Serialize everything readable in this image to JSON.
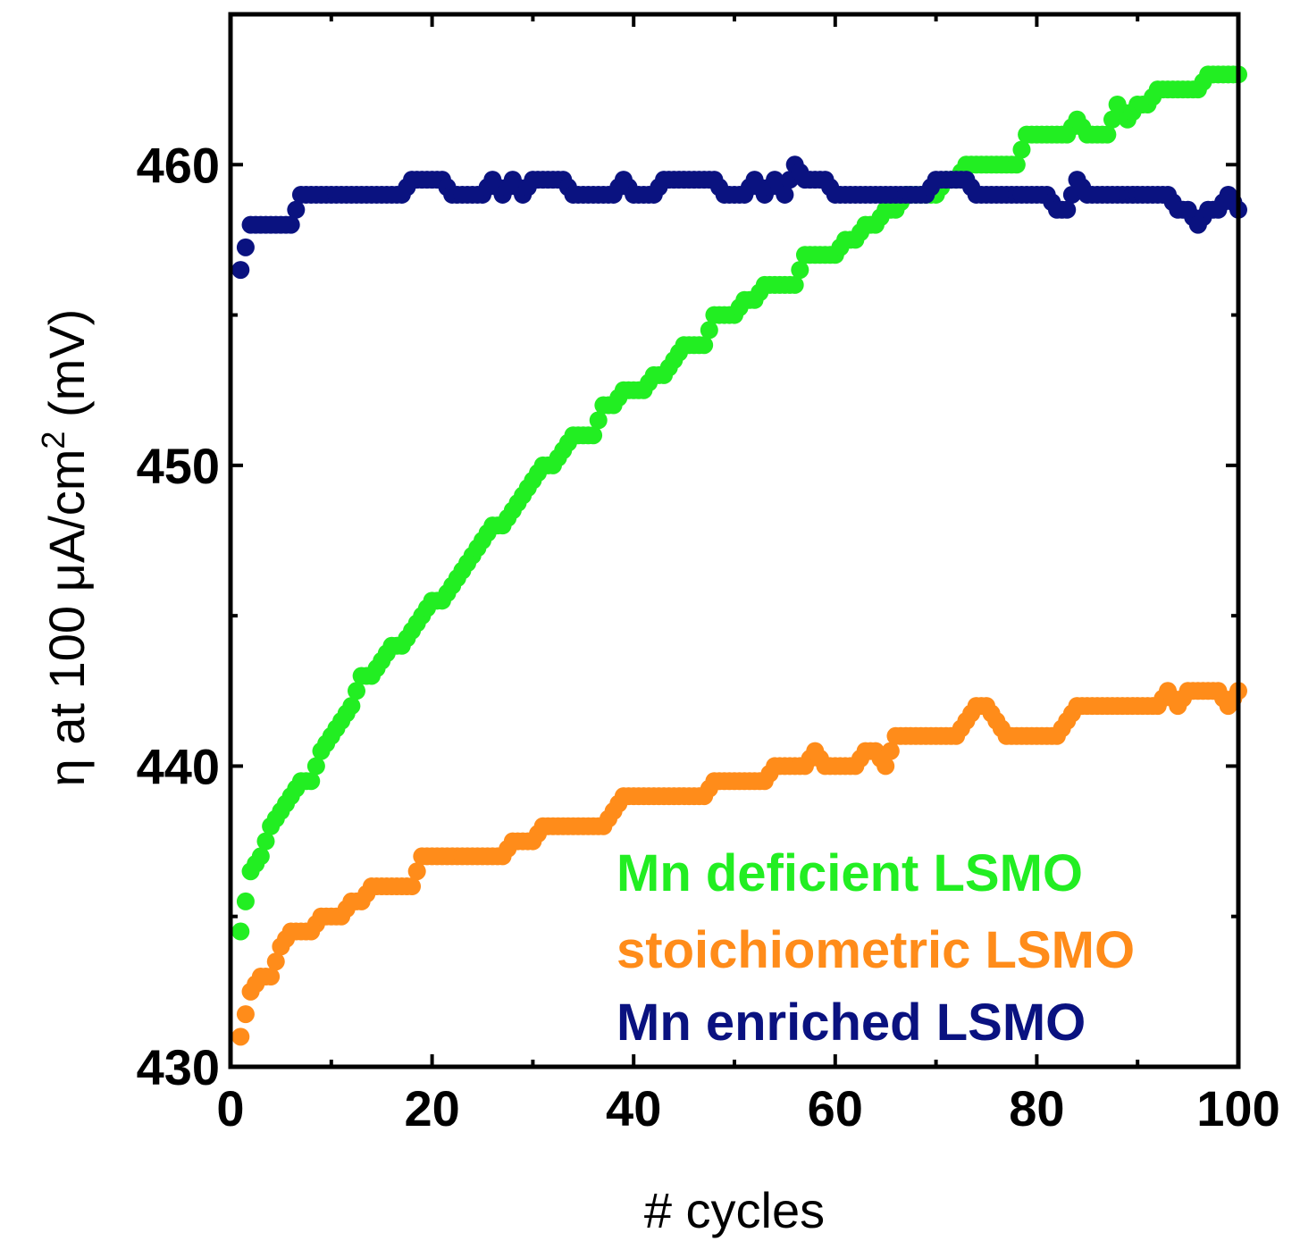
{
  "chart_data": {
    "type": "scatter",
    "title": "",
    "xlabel": "# cycles",
    "ylabel_prefix": "η at 100 μA/cm",
    "ylabel_sup": "2",
    "ylabel_suffix": " (mV)",
    "xlim": [
      0,
      100
    ],
    "ylim": [
      430,
      465
    ],
    "xticks": [
      0,
      20,
      40,
      60,
      80,
      100
    ],
    "xtick_labels": [
      "0",
      "20",
      "40",
      "60",
      "80",
      "100"
    ],
    "yticks": [
      430,
      440,
      450,
      460
    ],
    "ytick_labels": [
      "430",
      "440",
      "450",
      "460"
    ],
    "grid": false,
    "legend_position": "bottom-right",
    "series": [
      {
        "name": "Mn deficient LSMO",
        "color": "#22ee22",
        "anchors": [
          [
            1,
            434.5
          ],
          [
            2,
            436.5
          ],
          [
            3,
            437
          ],
          [
            4,
            438
          ],
          [
            5,
            438.5
          ],
          [
            6,
            439
          ],
          [
            7,
            439.5
          ],
          [
            8,
            439.5
          ],
          [
            9,
            440.5
          ],
          [
            10,
            441
          ],
          [
            11,
            441.5
          ],
          [
            12,
            442
          ],
          [
            13,
            443
          ],
          [
            14,
            443
          ],
          [
            15,
            443.5
          ],
          [
            16,
            444
          ],
          [
            17,
            444
          ],
          [
            18,
            444.5
          ],
          [
            19,
            445
          ],
          [
            20,
            445.5
          ],
          [
            21,
            445.5
          ],
          [
            22,
            446
          ],
          [
            23,
            446.5
          ],
          [
            24,
            447
          ],
          [
            25,
            447.5
          ],
          [
            26,
            448
          ],
          [
            27,
            448
          ],
          [
            28,
            448.5
          ],
          [
            29,
            449
          ],
          [
            30,
            449.5
          ],
          [
            31,
            450
          ],
          [
            32,
            450
          ],
          [
            33,
            450.5
          ],
          [
            34,
            451
          ],
          [
            35,
            451
          ],
          [
            36,
            451
          ],
          [
            37,
            452
          ],
          [
            38,
            452
          ],
          [
            39,
            452.5
          ],
          [
            40,
            452.5
          ],
          [
            41,
            452.5
          ],
          [
            42,
            453
          ],
          [
            43,
            453
          ],
          [
            44,
            453.5
          ],
          [
            45,
            454
          ],
          [
            46,
            454
          ],
          [
            47,
            454
          ],
          [
            48,
            455
          ],
          [
            49,
            455
          ],
          [
            50,
            455
          ],
          [
            51,
            455.5
          ],
          [
            52,
            455.5
          ],
          [
            53,
            456
          ],
          [
            54,
            456
          ],
          [
            55,
            456
          ],
          [
            56,
            456
          ],
          [
            57,
            457
          ],
          [
            58,
            457
          ],
          [
            59,
            457
          ],
          [
            60,
            457
          ],
          [
            61,
            457.5
          ],
          [
            62,
            457.5
          ],
          [
            63,
            458
          ],
          [
            64,
            458
          ],
          [
            65,
            458.5
          ],
          [
            66,
            458.5
          ],
          [
            67,
            459
          ],
          [
            68,
            459
          ],
          [
            69,
            459
          ],
          [
            70,
            459
          ],
          [
            71,
            459.5
          ],
          [
            72,
            459.5
          ],
          [
            73,
            460
          ],
          [
            74,
            460
          ],
          [
            75,
            460
          ],
          [
            76,
            460
          ],
          [
            77,
            460
          ],
          [
            78,
            460
          ],
          [
            79,
            461
          ],
          [
            80,
            461
          ],
          [
            81,
            461
          ],
          [
            82,
            461
          ],
          [
            83,
            461
          ],
          [
            84,
            461.5
          ],
          [
            85,
            461
          ],
          [
            86,
            461
          ],
          [
            87,
            461
          ],
          [
            88,
            462
          ],
          [
            89,
            461.5
          ],
          [
            90,
            462
          ],
          [
            91,
            462
          ],
          [
            92,
            462.5
          ],
          [
            93,
            462.5
          ],
          [
            94,
            462.5
          ],
          [
            95,
            462.5
          ],
          [
            96,
            462.5
          ],
          [
            97,
            463
          ],
          [
            98,
            463
          ],
          [
            99,
            463
          ],
          [
            100,
            463
          ]
        ]
      },
      {
        "name": "stoichiometric LSMO",
        "color": "#ff8c1a",
        "anchors": [
          [
            1,
            431
          ],
          [
            2,
            432.5
          ],
          [
            3,
            433
          ],
          [
            4,
            433
          ],
          [
            5,
            434
          ],
          [
            6,
            434.5
          ],
          [
            7,
            434.5
          ],
          [
            8,
            434.5
          ],
          [
            9,
            435
          ],
          [
            10,
            435
          ],
          [
            11,
            435
          ],
          [
            12,
            435.5
          ],
          [
            13,
            435.5
          ],
          [
            14,
            436
          ],
          [
            15,
            436
          ],
          [
            16,
            436
          ],
          [
            17,
            436
          ],
          [
            18,
            436
          ],
          [
            19,
            437
          ],
          [
            20,
            437
          ],
          [
            21,
            437
          ],
          [
            22,
            437
          ],
          [
            23,
            437
          ],
          [
            24,
            437
          ],
          [
            25,
            437
          ],
          [
            26,
            437
          ],
          [
            27,
            437
          ],
          [
            28,
            437.5
          ],
          [
            29,
            437.5
          ],
          [
            30,
            437.5
          ],
          [
            31,
            438
          ],
          [
            32,
            438
          ],
          [
            33,
            438
          ],
          [
            34,
            438
          ],
          [
            35,
            438
          ],
          [
            36,
            438
          ],
          [
            37,
            438
          ],
          [
            38,
            438.5
          ],
          [
            39,
            439
          ],
          [
            40,
            439
          ],
          [
            41,
            439
          ],
          [
            42,
            439
          ],
          [
            43,
            439
          ],
          [
            44,
            439
          ],
          [
            45,
            439
          ],
          [
            46,
            439
          ],
          [
            47,
            439
          ],
          [
            48,
            439.5
          ],
          [
            49,
            439.5
          ],
          [
            50,
            439.5
          ],
          [
            51,
            439.5
          ],
          [
            52,
            439.5
          ],
          [
            53,
            439.5
          ],
          [
            54,
            440
          ],
          [
            55,
            440
          ],
          [
            56,
            440
          ],
          [
            57,
            440
          ],
          [
            58,
            440.5
          ],
          [
            59,
            440
          ],
          [
            60,
            440
          ],
          [
            61,
            440
          ],
          [
            62,
            440
          ],
          [
            63,
            440.5
          ],
          [
            64,
            440.5
          ],
          [
            65,
            440
          ],
          [
            66,
            441
          ],
          [
            67,
            441
          ],
          [
            68,
            441
          ],
          [
            69,
            441
          ],
          [
            70,
            441
          ],
          [
            71,
            441
          ],
          [
            72,
            441
          ],
          [
            73,
            441.5
          ],
          [
            74,
            442
          ],
          [
            75,
            442
          ],
          [
            76,
            441.5
          ],
          [
            77,
            441
          ],
          [
            78,
            441
          ],
          [
            79,
            441
          ],
          [
            80,
            441
          ],
          [
            81,
            441
          ],
          [
            82,
            441
          ],
          [
            83,
            441.5
          ],
          [
            84,
            442
          ],
          [
            85,
            442
          ],
          [
            86,
            442
          ],
          [
            87,
            442
          ],
          [
            88,
            442
          ],
          [
            89,
            442
          ],
          [
            90,
            442
          ],
          [
            91,
            442
          ],
          [
            92,
            442
          ],
          [
            93,
            442.5
          ],
          [
            94,
            442
          ],
          [
            95,
            442.5
          ],
          [
            96,
            442.5
          ],
          [
            97,
            442.5
          ],
          [
            98,
            442.5
          ],
          [
            99,
            442
          ],
          [
            100,
            442.5
          ]
        ]
      },
      {
        "name": "Mn enriched LSMO",
        "color": "#0a1280",
        "anchors": [
          [
            1,
            456.5
          ],
          [
            2,
            458
          ],
          [
            3,
            458
          ],
          [
            4,
            458
          ],
          [
            5,
            458
          ],
          [
            6,
            458
          ],
          [
            7,
            459
          ],
          [
            8,
            459
          ],
          [
            9,
            459
          ],
          [
            10,
            459
          ],
          [
            11,
            459
          ],
          [
            12,
            459
          ],
          [
            13,
            459
          ],
          [
            14,
            459
          ],
          [
            15,
            459
          ],
          [
            16,
            459
          ],
          [
            17,
            459
          ],
          [
            18,
            459.5
          ],
          [
            19,
            459.5
          ],
          [
            20,
            459.5
          ],
          [
            21,
            459.5
          ],
          [
            22,
            459
          ],
          [
            23,
            459
          ],
          [
            24,
            459
          ],
          [
            25,
            459
          ],
          [
            26,
            459.5
          ],
          [
            27,
            459
          ],
          [
            28,
            459.5
          ],
          [
            29,
            459
          ],
          [
            30,
            459.5
          ],
          [
            31,
            459.5
          ],
          [
            32,
            459.5
          ],
          [
            33,
            459.5
          ],
          [
            34,
            459
          ],
          [
            35,
            459
          ],
          [
            36,
            459
          ],
          [
            37,
            459
          ],
          [
            38,
            459
          ],
          [
            39,
            459.5
          ],
          [
            40,
            459
          ],
          [
            41,
            459
          ],
          [
            42,
            459
          ],
          [
            43,
            459.5
          ],
          [
            44,
            459.5
          ],
          [
            45,
            459.5
          ],
          [
            46,
            459.5
          ],
          [
            47,
            459.5
          ],
          [
            48,
            459.5
          ],
          [
            49,
            459
          ],
          [
            50,
            459
          ],
          [
            51,
            459
          ],
          [
            52,
            459.5
          ],
          [
            53,
            459
          ],
          [
            54,
            459.5
          ],
          [
            55,
            459
          ],
          [
            56,
            460
          ],
          [
            57,
            459.5
          ],
          [
            58,
            459.5
          ],
          [
            59,
            459.5
          ],
          [
            60,
            459
          ],
          [
            61,
            459
          ],
          [
            62,
            459
          ],
          [
            63,
            459
          ],
          [
            64,
            459
          ],
          [
            65,
            459
          ],
          [
            66,
            459
          ],
          [
            67,
            459
          ],
          [
            68,
            459
          ],
          [
            69,
            459
          ],
          [
            70,
            459.5
          ],
          [
            71,
            459.5
          ],
          [
            72,
            459.5
          ],
          [
            73,
            459.5
          ],
          [
            74,
            459
          ],
          [
            75,
            459
          ],
          [
            76,
            459
          ],
          [
            77,
            459
          ],
          [
            78,
            459
          ],
          [
            79,
            459
          ],
          [
            80,
            459
          ],
          [
            81,
            459
          ],
          [
            82,
            458.5
          ],
          [
            83,
            458.5
          ],
          [
            84,
            459.5
          ],
          [
            85,
            459
          ],
          [
            86,
            459
          ],
          [
            87,
            459
          ],
          [
            88,
            459
          ],
          [
            89,
            459
          ],
          [
            90,
            459
          ],
          [
            91,
            459
          ],
          [
            92,
            459
          ],
          [
            93,
            459
          ],
          [
            94,
            458.5
          ],
          [
            95,
            458.5
          ],
          [
            96,
            458
          ],
          [
            97,
            458.5
          ],
          [
            98,
            458.5
          ],
          [
            99,
            459
          ],
          [
            100,
            458.5
          ]
        ]
      }
    ]
  }
}
